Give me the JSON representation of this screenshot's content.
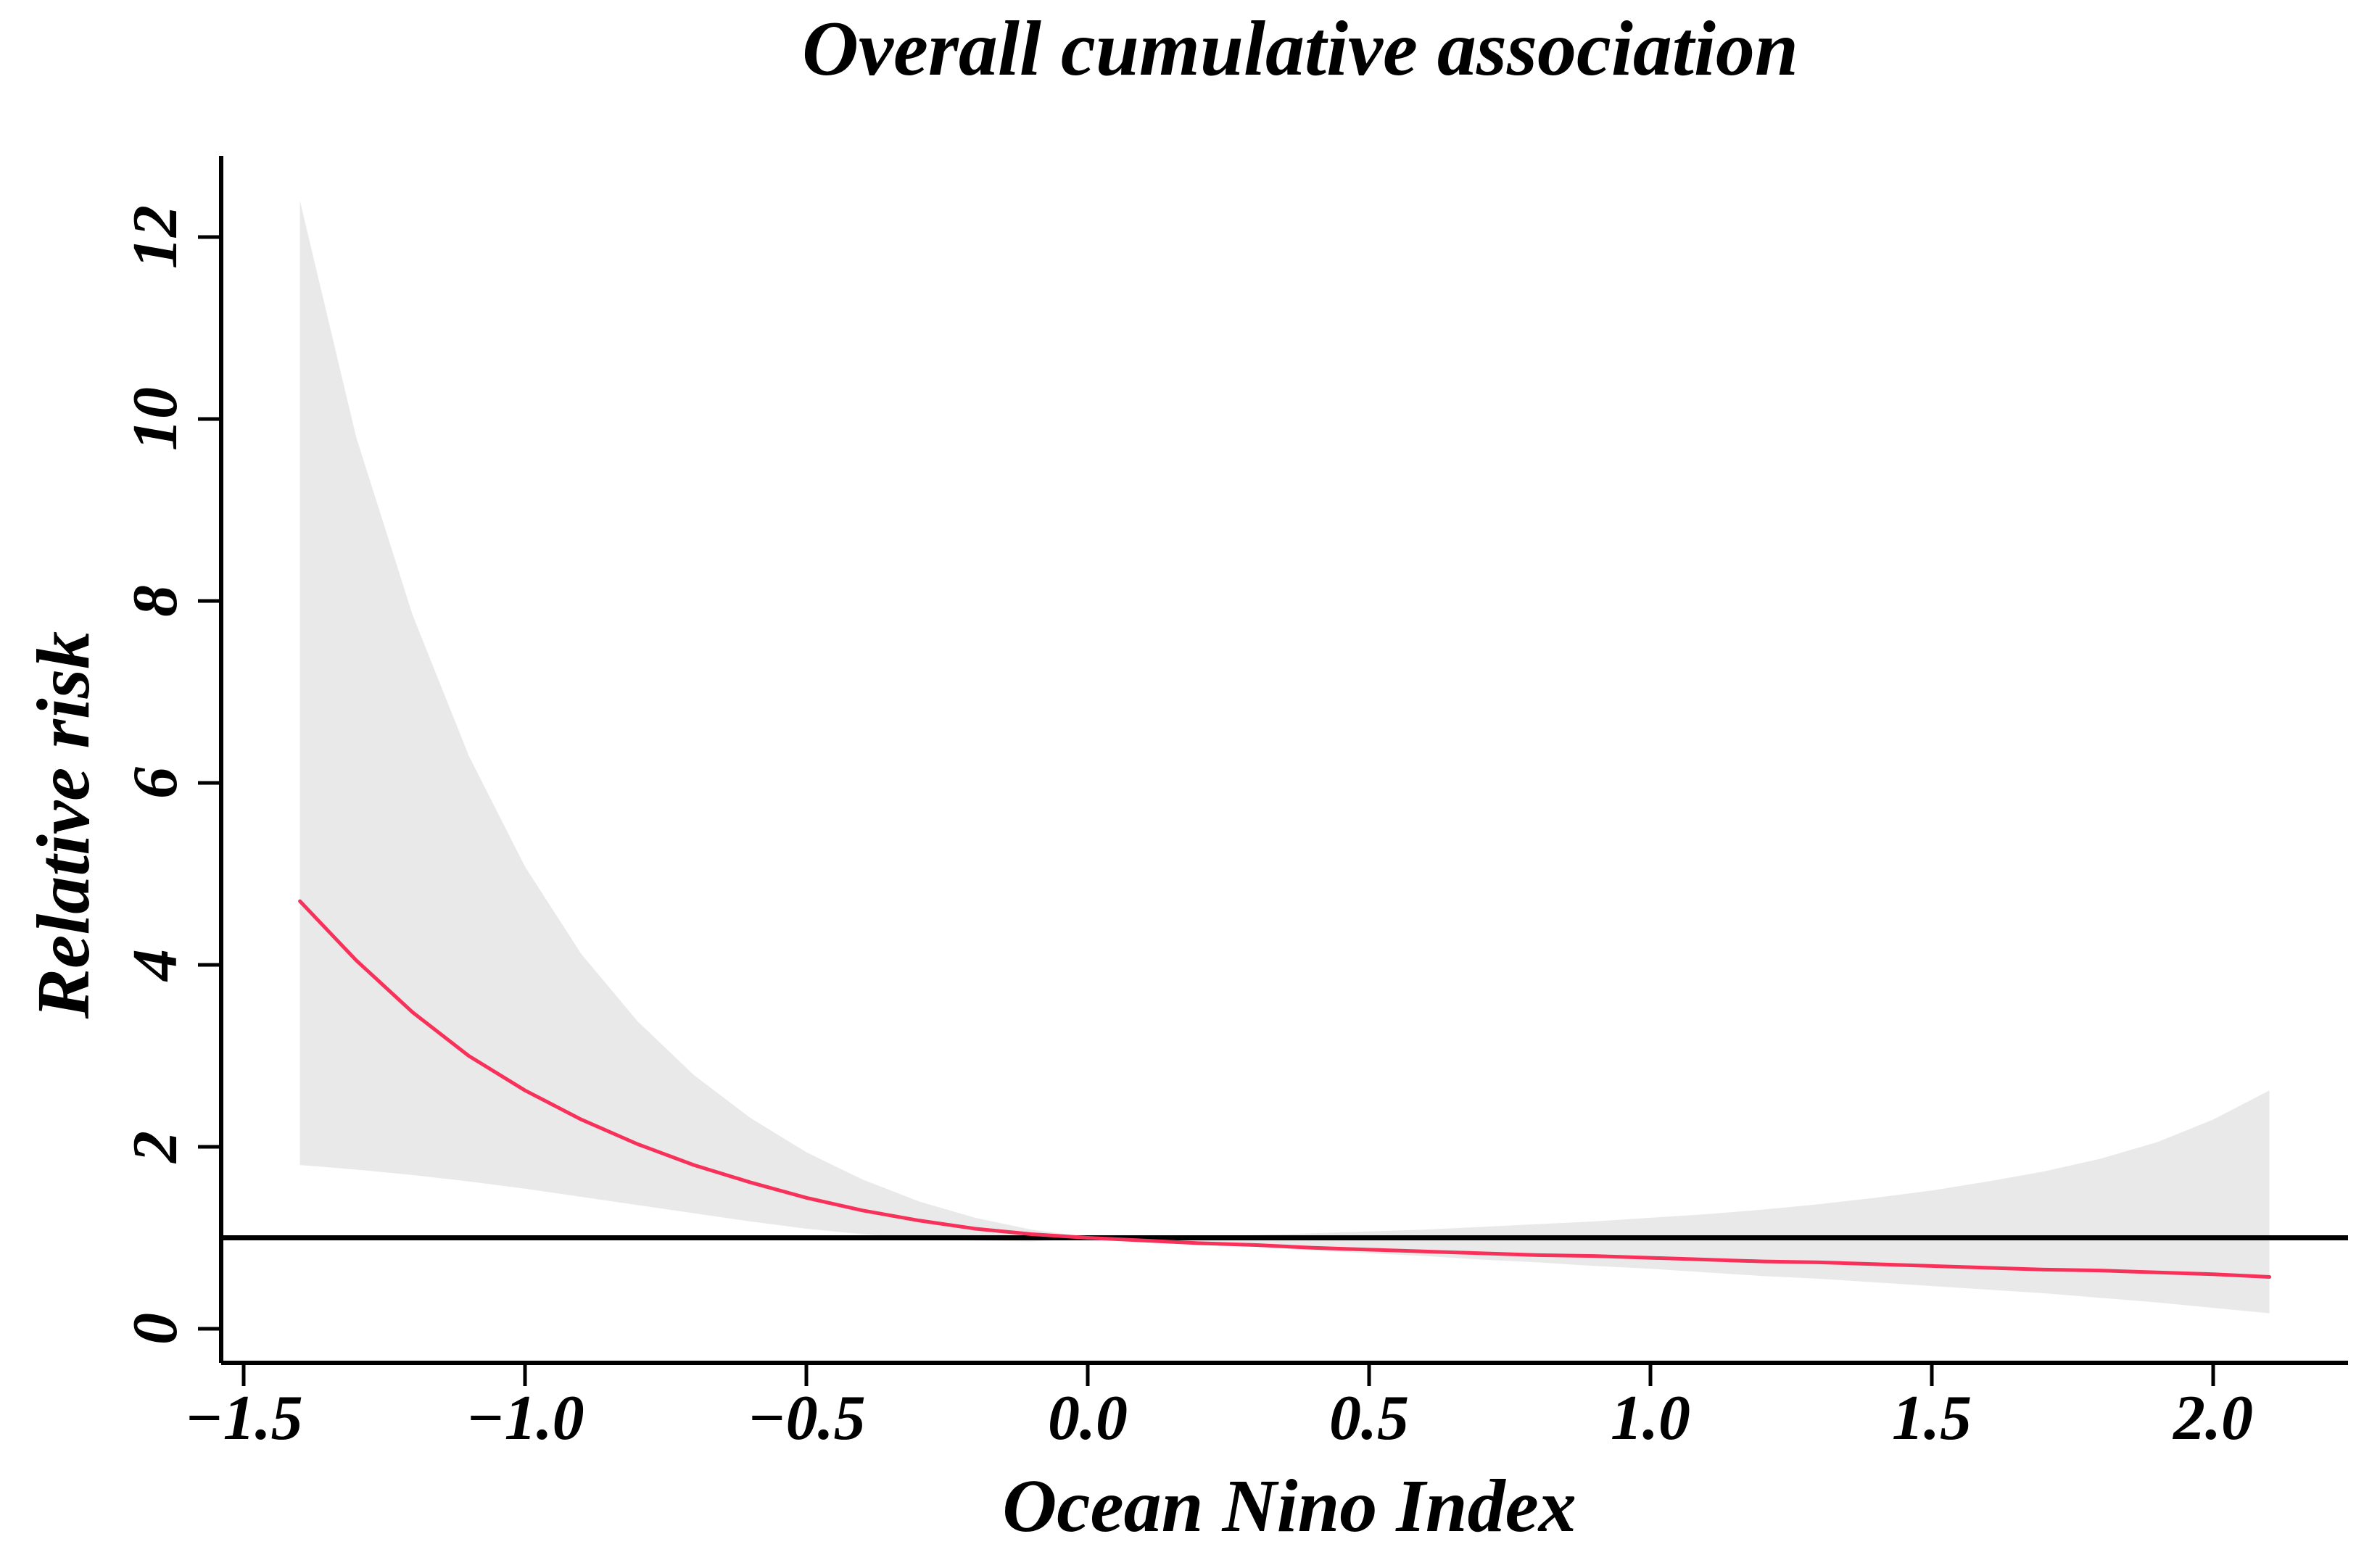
{
  "figure": {
    "title": "Overall cumulative association",
    "x_axis": {
      "label": "Ocean Nino Index",
      "tick_labels": [
        "−1.5",
        "−1.0",
        "−0.5",
        "0.0",
        "0.5",
        "1.0",
        "1.5",
        "2.0"
      ],
      "tick_values": [
        -1.5,
        -1.0,
        -0.5,
        0.0,
        0.5,
        1.0,
        1.5,
        2.0
      ]
    },
    "y_axis": {
      "label": "Relative risk",
      "tick_labels": [
        "0",
        "2",
        "4",
        "6",
        "8",
        "10",
        "12"
      ],
      "tick_values": [
        0,
        2,
        4,
        6,
        8,
        10,
        12
      ]
    },
    "colors": {
      "curve": "#F8315A",
      "band": "#E9E9E9",
      "axis": "#000000",
      "reference_line": "#000000",
      "background": "#FFFFFF"
    }
  },
  "chart_data": {
    "type": "line",
    "title": "Overall cumulative association",
    "xlabel": "Ocean Nino Index",
    "ylabel": "Relative risk",
    "xlim": [
      -1.54,
      2.24
    ],
    "ylim": [
      -0.37,
      12.9
    ],
    "x_ticks": [
      -1.5,
      -1.0,
      -0.5,
      0.0,
      0.5,
      1.0,
      1.5,
      2.0
    ],
    "y_ticks": [
      0,
      2,
      4,
      6,
      8,
      10,
      12
    ],
    "grid": false,
    "legend": "none",
    "reference_line_y": 1,
    "x": [
      -1.4,
      -1.3,
      -1.2,
      -1.1,
      -1.0,
      -0.9,
      -0.8,
      -0.7,
      -0.6,
      -0.5,
      -0.4,
      -0.3,
      -0.2,
      -0.1,
      0.0,
      0.1,
      0.2,
      0.3,
      0.4,
      0.5,
      0.6,
      0.7,
      0.8,
      0.9,
      1.0,
      1.1,
      1.2,
      1.3,
      1.4,
      1.5,
      1.6,
      1.7,
      1.8,
      1.9,
      2.0,
      2.1
    ],
    "series": [
      {
        "name": "relative-risk-estimate",
        "role": "fit",
        "values": [
          4.7,
          4.05,
          3.48,
          3.0,
          2.62,
          2.3,
          2.03,
          1.8,
          1.61,
          1.44,
          1.3,
          1.19,
          1.1,
          1.04,
          1.0,
          0.97,
          0.94,
          0.92,
          0.89,
          0.87,
          0.85,
          0.83,
          0.81,
          0.8,
          0.78,
          0.76,
          0.74,
          0.73,
          0.71,
          0.69,
          0.67,
          0.65,
          0.64,
          0.62,
          0.6,
          0.57
        ]
      },
      {
        "name": "ci-upper",
        "role": "band-upper",
        "values": [
          12.4,
          9.8,
          7.85,
          6.3,
          5.08,
          4.12,
          3.38,
          2.79,
          2.32,
          1.94,
          1.64,
          1.4,
          1.22,
          1.09,
          1.01,
          1.01,
          1.02,
          1.03,
          1.05,
          1.07,
          1.09,
          1.12,
          1.15,
          1.18,
          1.22,
          1.26,
          1.31,
          1.37,
          1.44,
          1.52,
          1.62,
          1.73,
          1.87,
          2.05,
          2.3,
          2.62
        ]
      },
      {
        "name": "ci-lower",
        "role": "band-lower",
        "values": [
          1.8,
          1.75,
          1.69,
          1.62,
          1.54,
          1.45,
          1.36,
          1.27,
          1.18,
          1.1,
          1.04,
          1.0,
          0.97,
          0.96,
          0.99,
          0.96,
          0.93,
          0.9,
          0.86,
          0.83,
          0.8,
          0.76,
          0.73,
          0.69,
          0.66,
          0.62,
          0.58,
          0.55,
          0.51,
          0.47,
          0.43,
          0.39,
          0.34,
          0.29,
          0.23,
          0.17
        ]
      }
    ]
  }
}
